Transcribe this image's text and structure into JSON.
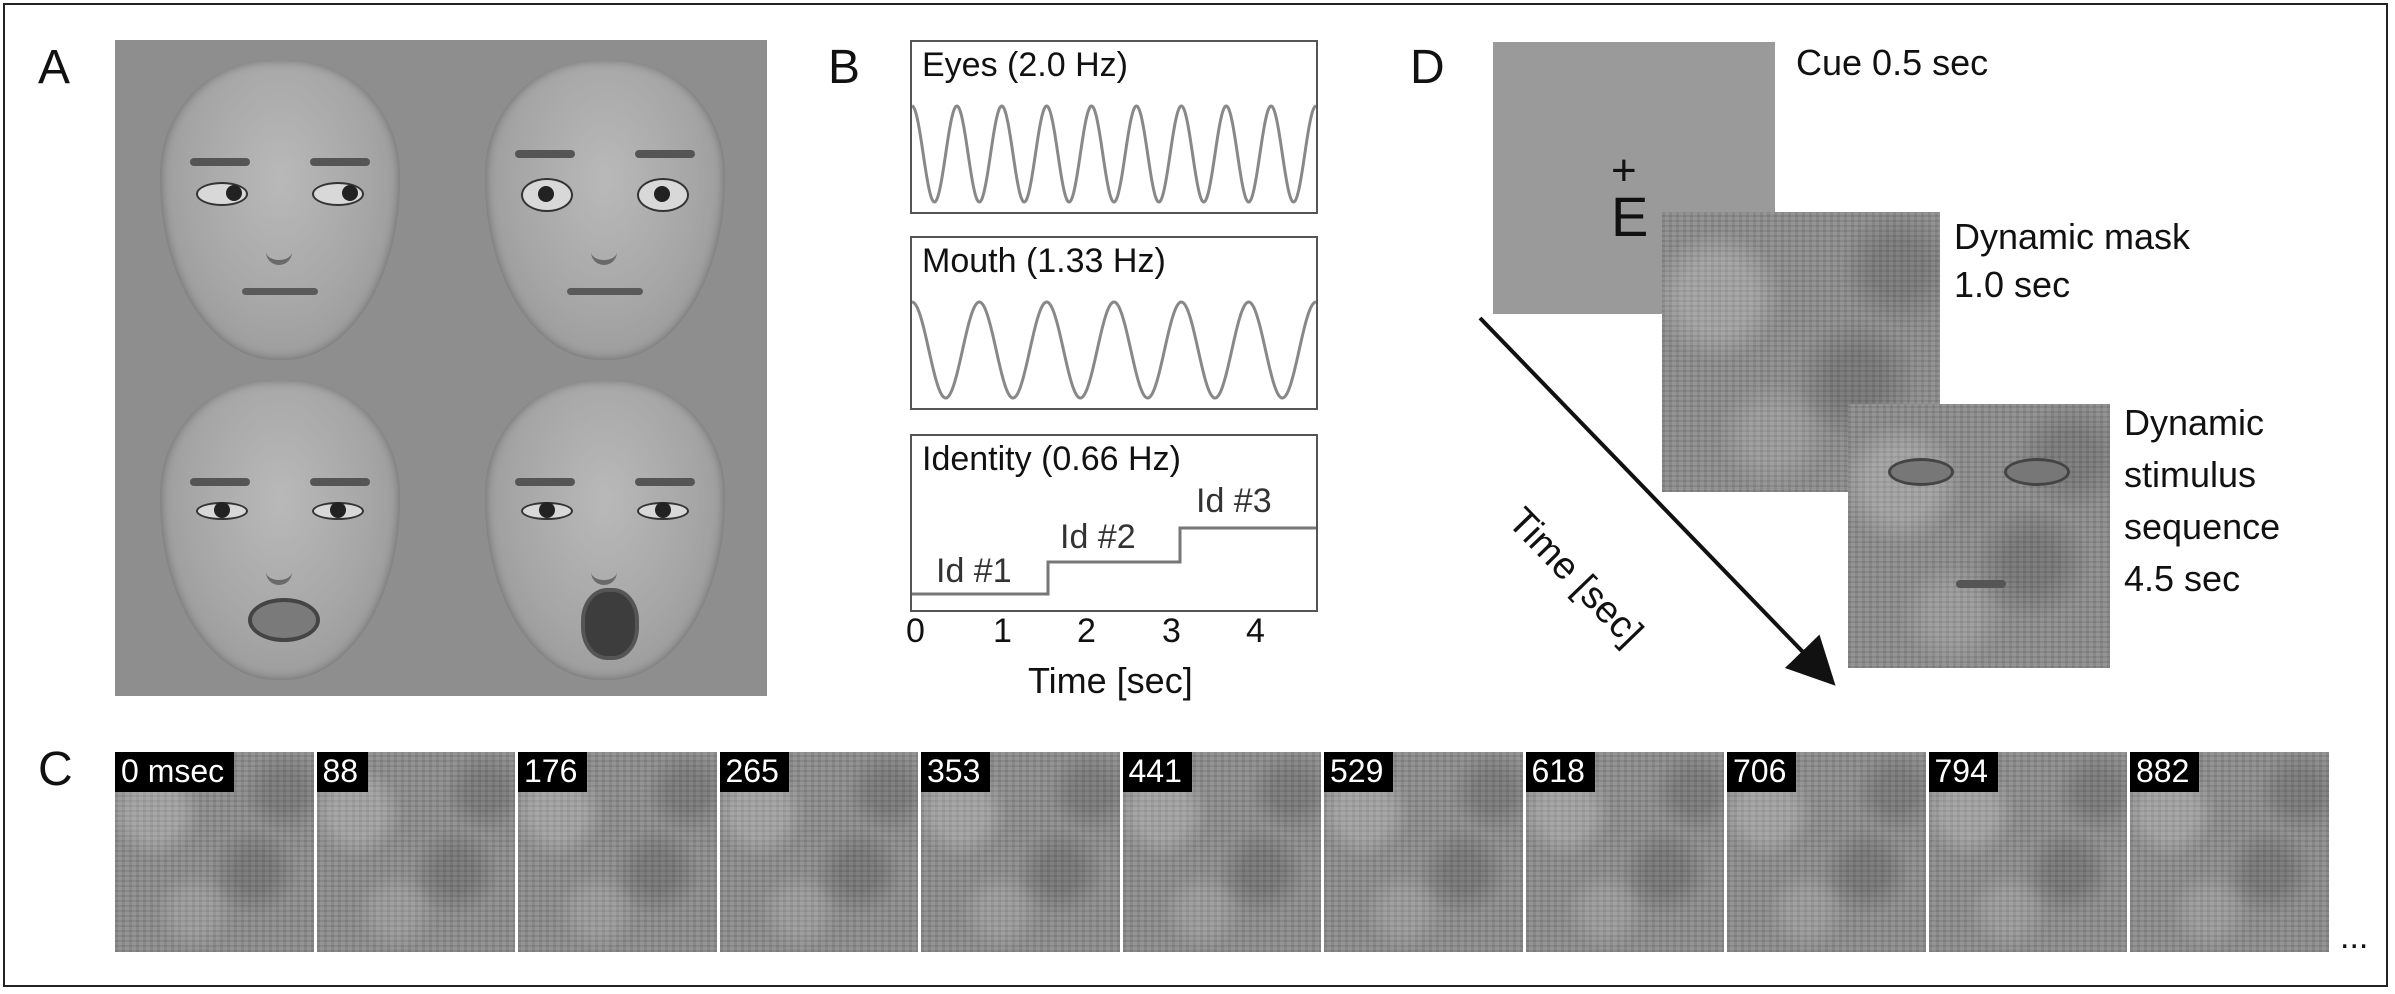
{
  "panel_letters": {
    "a": "A",
    "b": "B",
    "c": "C",
    "d": "D"
  },
  "panel_b": {
    "eyes_title": "Eyes (2.0 Hz)",
    "mouth_title": "Mouth (1.33 Hz)",
    "identity_title": "Identity (0.66 Hz)",
    "id_labels": [
      "Id #1",
      "Id #2",
      "Id #3"
    ],
    "x_ticks": [
      "0",
      "1",
      "2",
      "3",
      "4"
    ],
    "x_axis_title": "Time [sec]"
  },
  "panel_d": {
    "cue_label": "Cue 0.5 sec",
    "fixation_plus": "+",
    "cue_letter": "E",
    "mask_label_line1": "Dynamic mask",
    "mask_label_line2": "1.0 sec",
    "stim_label_line1": "Dynamic",
    "stim_label_line2": "stimulus",
    "stim_label_line3": "sequence",
    "stim_label_line4": "4.5 sec",
    "time_axis": "Time [sec]"
  },
  "panel_c": {
    "frame_labels": [
      "0 msec",
      "88",
      "176",
      "265",
      "353",
      "441",
      "529",
      "618",
      "706",
      "794",
      "882"
    ],
    "ellipsis": "..."
  }
}
